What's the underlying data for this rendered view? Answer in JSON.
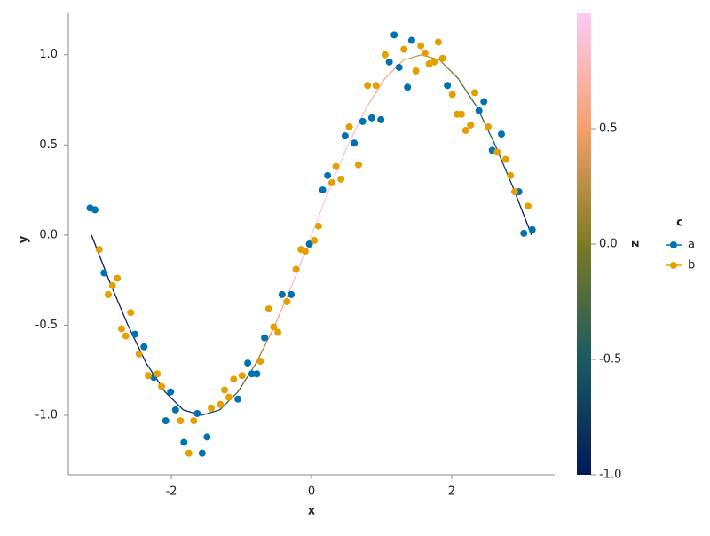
{
  "chart_data": {
    "type": "scatter",
    "x_label": "x",
    "y_label": "y",
    "xlim": [
      -3.47,
      3.47
    ],
    "xticks": [
      -2,
      0,
      2
    ],
    "ylim": [
      -1.33,
      1.23
    ],
    "yticks": [
      {
        "value": -1,
        "label": "-1.0"
      },
      {
        "value": -0.5,
        "label": "-0.5"
      },
      {
        "value": 0,
        "label": "0.0"
      },
      {
        "value": 0.5,
        "label": "0.5"
      },
      {
        "value": 1,
        "label": "1.0"
      }
    ],
    "legend_title": "c",
    "series": [
      {
        "name": "a",
        "color": "#0072b2",
        "x": [
          -3.16,
          -3.09,
          -2.96,
          -2.52,
          -2.39,
          -2.25,
          -2.01,
          -2.08,
          -1.94,
          -1.82,
          -1.63,
          -1.56,
          -1.49,
          -1.05,
          -0.91,
          -0.85,
          -0.78,
          -0.67,
          -0.42,
          -0.29,
          -0.03,
          0.16,
          0.23,
          0.48,
          0.61,
          0.73,
          0.86,
          0.99,
          1.11,
          1.18,
          1.25,
          1.37,
          1.43,
          1.94,
          2.39,
          2.46,
          2.58,
          2.71,
          2.96,
          3.03,
          3.15
        ],
        "values": [
          0.15,
          0.14,
          -0.21,
          -0.55,
          -0.62,
          -0.79,
          -0.87,
          -1.03,
          -0.97,
          -1.15,
          -0.99,
          -1.21,
          -1.12,
          -0.91,
          -0.71,
          -0.77,
          -0.77,
          -0.57,
          -0.33,
          -0.33,
          -0.05,
          0.25,
          0.33,
          0.55,
          0.51,
          0.63,
          0.65,
          0.64,
          0.96,
          1.11,
          0.93,
          0.82,
          1.08,
          0.83,
          0.69,
          0.74,
          0.47,
          0.56,
          0.24,
          0.01,
          0.03
        ]
      },
      {
        "name": "b",
        "color": "#e69f00",
        "x": [
          -3.03,
          -2.9,
          -2.84,
          -2.77,
          -2.71,
          -2.65,
          -2.58,
          -2.46,
          -2.33,
          -2.2,
          -2.14,
          -1.87,
          -1.75,
          -1.68,
          -1.43,
          -1.3,
          -1.24,
          -1.18,
          -1.11,
          -0.99,
          -0.73,
          -0.61,
          -0.54,
          -0.48,
          -0.35,
          -0.22,
          -0.15,
          -0.09,
          0.04,
          0.1,
          0.29,
          0.35,
          0.42,
          0.54,
          0.67,
          0.8,
          0.92,
          1.05,
          1.32,
          1.49,
          1.56,
          1.62,
          1.68,
          1.75,
          1.81,
          1.87,
          2.01,
          2.08,
          2.14,
          2.2,
          2.27,
          2.33,
          2.52,
          2.65,
          2.77,
          2.84,
          2.9,
          3.09
        ],
        "values": [
          -0.08,
          -0.33,
          -0.28,
          -0.24,
          -0.52,
          -0.56,
          -0.43,
          -0.66,
          -0.78,
          -0.77,
          -0.84,
          -1.03,
          -1.21,
          -1.03,
          -0.96,
          -0.94,
          -0.86,
          -0.9,
          -0.8,
          -0.78,
          -0.7,
          -0.41,
          -0.51,
          -0.54,
          -0.37,
          -0.19,
          -0.08,
          -0.09,
          -0.03,
          0.05,
          0.29,
          0.38,
          0.31,
          0.6,
          0.39,
          0.83,
          0.83,
          1.0,
          1.03,
          0.91,
          1.05,
          1.01,
          0.95,
          0.96,
          1.07,
          0.98,
          0.78,
          0.67,
          0.67,
          0.58,
          0.61,
          0.79,
          0.6,
          0.46,
          0.42,
          0.33,
          0.24,
          0.16
        ]
      }
    ],
    "line": {
      "x": [
        -3.14,
        -2.88,
        -2.62,
        -2.36,
        -2.09,
        -1.83,
        -1.57,
        -1.31,
        -1.05,
        -0.79,
        -0.52,
        -0.26,
        0,
        0.26,
        0.52,
        0.79,
        1.05,
        1.31,
        1.57,
        1.83,
        2.09,
        2.36,
        2.62,
        2.88,
        3.14
      ],
      "values": [
        0,
        -0.26,
        -0.5,
        -0.71,
        -0.87,
        -0.97,
        -1,
        -0.97,
        -0.87,
        -0.71,
        -0.5,
        -0.26,
        0,
        0.26,
        0.5,
        0.71,
        0.87,
        0.97,
        1,
        0.97,
        0.87,
        0.71,
        0.5,
        0.26,
        0
      ],
      "z": [
        -1,
        -0.95,
        -0.9,
        -0.9,
        -0.85,
        -0.8,
        -0.7,
        -0.55,
        -0.3,
        0,
        0.5,
        0.85,
        1,
        0.95,
        0.9,
        0.8,
        0.6,
        0.5,
        0.3,
        0.1,
        -0.1,
        -0.3,
        -0.5,
        -0.8,
        -1
      ]
    },
    "colorbar": {
      "label": "z",
      "zlim": [
        -1,
        1
      ],
      "ticks": [
        {
          "value": -1,
          "label": "-1.0"
        },
        {
          "value": -0.5,
          "label": "-0.5"
        },
        {
          "value": 0,
          "label": "0.0"
        },
        {
          "value": 0.5,
          "label": "0.5"
        }
      ],
      "colorscale": [
        "#03185a",
        "#1b5a62",
        "#7d7a24",
        "#f6a06c",
        "#fbcbf6"
      ]
    }
  }
}
